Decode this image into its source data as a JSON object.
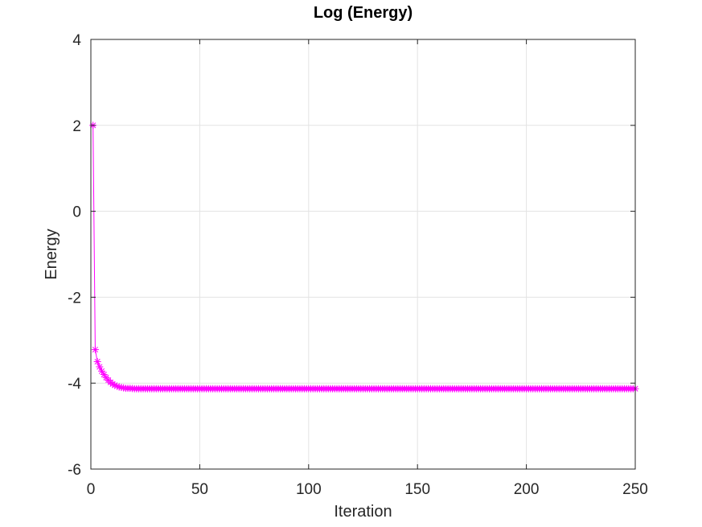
{
  "chart_data": {
    "type": "line",
    "title": "Log (Energy)",
    "xlabel": "Iteration",
    "ylabel": "Energy",
    "xlim": [
      0,
      250
    ],
    "ylim": [
      -6,
      4
    ],
    "x_ticks": [
      0,
      50,
      100,
      150,
      200,
      250
    ],
    "y_ticks": [
      -6,
      -4,
      -2,
      0,
      2,
      4
    ],
    "x_tick_labels": [
      "0",
      "50",
      "100",
      "150",
      "200",
      "250"
    ],
    "y_tick_labels": [
      "-6",
      "-4",
      "-2",
      "0",
      "2",
      "4"
    ],
    "grid": true,
    "series": [
      {
        "color": "#ff00ff",
        "marker": "asterisk",
        "x_start": 1,
        "x_end": 250,
        "points": [
          [
            1,
            2.0
          ],
          [
            2,
            -3.22
          ],
          [
            3,
            -3.5
          ],
          [
            4,
            -3.62
          ],
          [
            5,
            -3.72
          ],
          [
            6,
            -3.8
          ],
          [
            7,
            -3.87
          ],
          [
            8,
            -3.93
          ],
          [
            9,
            -3.98
          ],
          [
            10,
            -4.02
          ],
          [
            11,
            -4.05
          ],
          [
            12,
            -4.07
          ],
          [
            13,
            -4.09
          ],
          [
            14,
            -4.1
          ],
          [
            15,
            -4.11
          ],
          [
            16,
            -4.12
          ],
          [
            18,
            -4.12
          ],
          [
            20,
            -4.13
          ],
          [
            250,
            -4.13
          ]
        ]
      }
    ]
  }
}
